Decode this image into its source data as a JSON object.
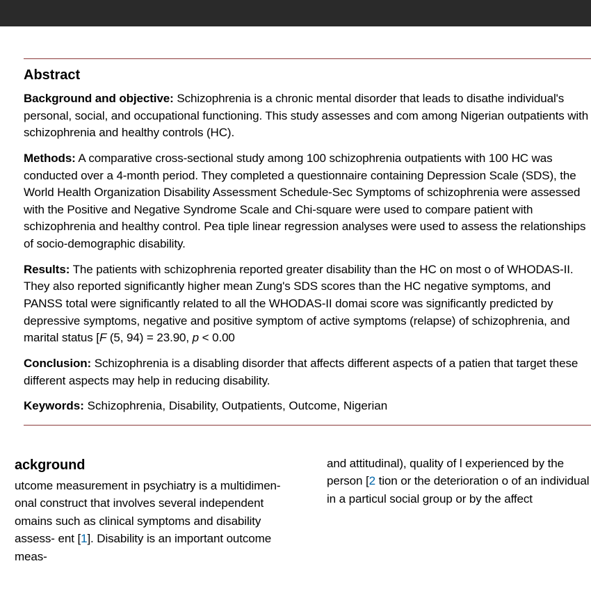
{
  "abstract": {
    "title": "Abstract",
    "background": {
      "label": "Background and objective:",
      "text": "  Schizophrenia is a chronic mental disorder that leads to disa­the individual's personal, social, and occupational functioning. This study assesses and com­ among Nigerian outpatients with schizophrenia and healthy controls (HC)."
    },
    "methods": {
      "label": "Methods:",
      "text": "  A comparative cross-sectional study among 100 schizophrenia outpatients with 100 HC was conducted over a 4-month period. They completed a questionnaire containing Depression Scale (SDS), the World Health Organization Disability Assessment Schedule-Sec­ Symptoms of schizophrenia were assessed with the Positive and Negative Syndrome Scale and Chi-square were used to compare patient with schizophrenia and healthy control. Pea­ tiple linear regression analyses were used to assess the relationships of socio-demographic disability."
    },
    "results": {
      "label": "Results:",
      "text_pre": "  The patients with schizophrenia reported greater disability than the HC on most o of WHODAS-II. They also reported significantly higher mean Zung's SDS scores than the HC negative symptoms, and PANSS total were significantly related to all the WHODAS-II domai­ score was significantly predicted by depressive symptoms, negative and positive symptom­ of active symptoms (relapse) of schizophrenia, and marital status [",
      "stat_F": "F",
      "stat_vals": " (5, 94) = 23.90, ",
      "stat_p": "p",
      "stat_end": " < 0.00"
    },
    "conclusion": {
      "label": "Conclusion:",
      "text": "  Schizophrenia is a disabling disorder that affects different aspects of a patien­ that target these different aspects may help in reducing disability."
    },
    "keywords": {
      "label": "Keywords:",
      "text": "  Schizophrenia, Disability, Outpatients, Outcome, Nigerian"
    }
  },
  "body": {
    "left": {
      "heading": "ackground",
      "para_pre": "utcome measurement in psychiatry is a multidimen-\nonal construct that involves several independent omains such as clinical symptoms and disability assess-\nent [",
      "ref1": "1",
      "para_post": "]. Disability is an important outcome meas-"
    },
    "right": {
      "para_pre": "and attitudinal), quality of l­ experienced by the person [",
      "ref2": "2",
      "para_post": "­ tion or the deterioration o­ of an individual in a particul­ social group or by the affect"
    }
  },
  "colors": {
    "topbar": "#2a2a2a",
    "rule": "#8b3a3a",
    "text": "#000000",
    "ref": "#0066aa",
    "background": "#ffffff"
  },
  "typography": {
    "body_fontsize": 17,
    "heading_fontsize": 20,
    "line_height": 1.45,
    "font_family": "Helvetica Neue, Arial, sans-serif"
  }
}
